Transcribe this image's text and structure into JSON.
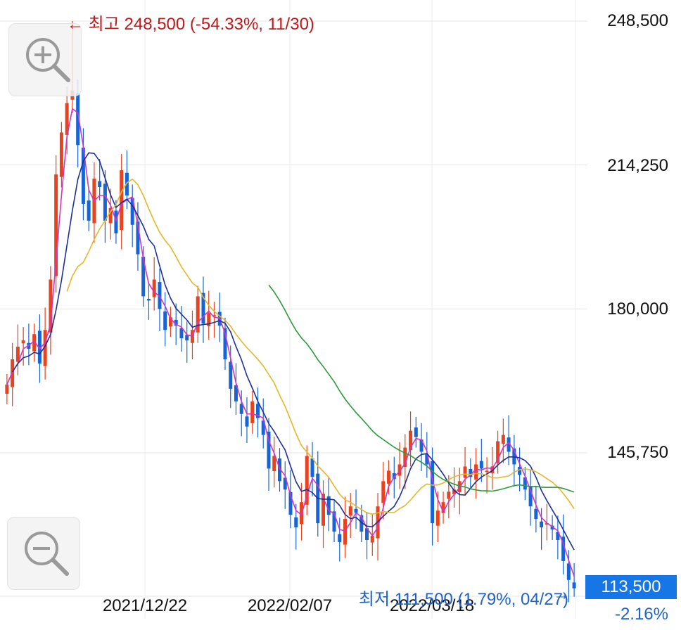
{
  "chart_data": {
    "type": "candlestick",
    "title": "",
    "xlabel": "",
    "ylabel": "",
    "ylim": [
      108000,
      251000
    ],
    "y_ticks": [
      "248,500",
      "214,250",
      "180,000",
      "145,750"
    ],
    "y_tick_values": [
      248500,
      214250,
      180000,
      145750
    ],
    "x_ticks": [
      "2021/12/22",
      "2022/02/07",
      "2022/03/18"
    ],
    "grid": true,
    "up_color": "#e8431f",
    "down_color": "#1565d8",
    "ma_colors": [
      "#d633c4",
      "#1d2f9a",
      "#e3b82a",
      "#2a9a3a"
    ],
    "high_annotation": "← 최고 248,500 (-54.33%, 11/30)",
    "low_annotation": "최저 111,500 (1.79%, 04/27)",
    "low_arrow": "→",
    "current_price": "113,500",
    "change": "-2.16%",
    "close_prices": [
      162000,
      168000,
      171000,
      172500,
      170500,
      174000,
      167000,
      175000,
      187000,
      212000,
      222000,
      229000,
      232000,
      219000,
      205000,
      201000,
      211000,
      209000,
      201000,
      204000,
      198000,
      213000,
      207000,
      200000,
      193000,
      183000,
      182000,
      187000,
      180000,
      175000,
      178000,
      176000,
      173000,
      172500,
      175000,
      183000,
      176500,
      179000,
      178500,
      176000,
      168000,
      161000,
      158000,
      155000,
      152000,
      158000,
      154000,
      150000,
      142000,
      145000,
      139000,
      137000,
      131000,
      128000,
      134000,
      145000,
      140000,
      129000,
      136000,
      131000,
      127000,
      124500,
      130000,
      133000,
      131500,
      127000,
      125000,
      126000,
      133000,
      139000,
      141500,
      139500,
      143000,
      147000,
      151000,
      149500,
      146000,
      143000,
      129000,
      132000,
      134000,
      136500,
      137000,
      139000,
      142500,
      140000,
      143000,
      142000,
      141500,
      142500,
      148500,
      150000,
      146000,
      143000,
      140500,
      137000,
      133000,
      130000,
      128000,
      129000,
      127500,
      125000,
      120000,
      115500,
      113500
    ]
  },
  "zoom": {
    "zoom_in_icon": "zoom-in-icon",
    "zoom_out_icon": "zoom-out-icon"
  }
}
